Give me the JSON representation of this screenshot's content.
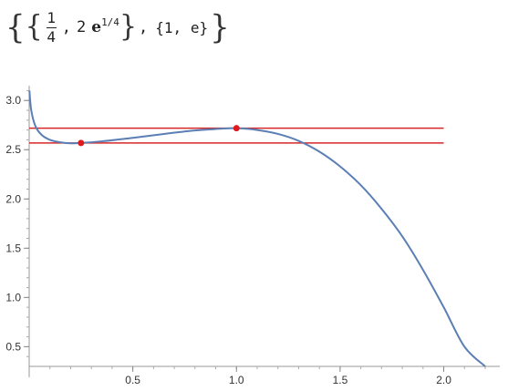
{
  "output": {
    "open_outer": "{",
    "open_inner": "{",
    "frac_num": "1",
    "frac_den": "4",
    "comma1": ",",
    "coef": "2",
    "e_symbol": "e",
    "exponent": "1/4",
    "close_inner": "}",
    "comma2": ",",
    "pair2": "{1, e}",
    "close_outer": "}"
  },
  "chart_data": {
    "type": "line",
    "function": "x^(1/x) * e^x style curve with local min at x=1/4 and local max at x=1",
    "xlim": [
      0,
      2.2
    ],
    "ylim": [
      0.3,
      3.15
    ],
    "xticks": [
      0.5,
      1.0,
      1.5,
      2.0
    ],
    "xtick_labels": [
      "0.5",
      "1.0",
      "1.5",
      "2.0"
    ],
    "yticks": [
      0.5,
      1.0,
      1.5,
      2.0,
      2.5,
      3.0
    ],
    "ytick_labels": [
      "0.5",
      "1.0",
      "1.5",
      "2.0",
      "2.5",
      "3.0"
    ],
    "series": [
      {
        "x": [
          0.001,
          0.01,
          0.03,
          0.06,
          0.1,
          0.15,
          0.2,
          0.25,
          0.35,
          0.5,
          0.65,
          0.8,
          0.9,
          1.0,
          1.1,
          1.2,
          1.3,
          1.4,
          1.5,
          1.6,
          1.7,
          1.8,
          1.9,
          2.0,
          2.1,
          2.2
        ],
        "y": [
          3.1,
          2.9,
          2.74,
          2.65,
          2.6,
          2.575,
          2.565,
          2.568,
          2.585,
          2.62,
          2.66,
          2.695,
          2.71,
          2.718,
          2.7,
          2.66,
          2.59,
          2.48,
          2.33,
          2.14,
          1.9,
          1.62,
          1.28,
          0.9,
          0.5,
          0.3
        ],
        "color": "#5b7fb5"
      }
    ],
    "hlines": [
      {
        "y": 2.718,
        "color": "#d62728"
      },
      {
        "y": 2.568,
        "color": "#d62728"
      }
    ],
    "points": [
      {
        "x": 0.25,
        "y": 2.568,
        "color": "#e0191e"
      },
      {
        "x": 1.0,
        "y": 2.718,
        "color": "#e0191e"
      }
    ],
    "hline_xmax": 2.0
  }
}
